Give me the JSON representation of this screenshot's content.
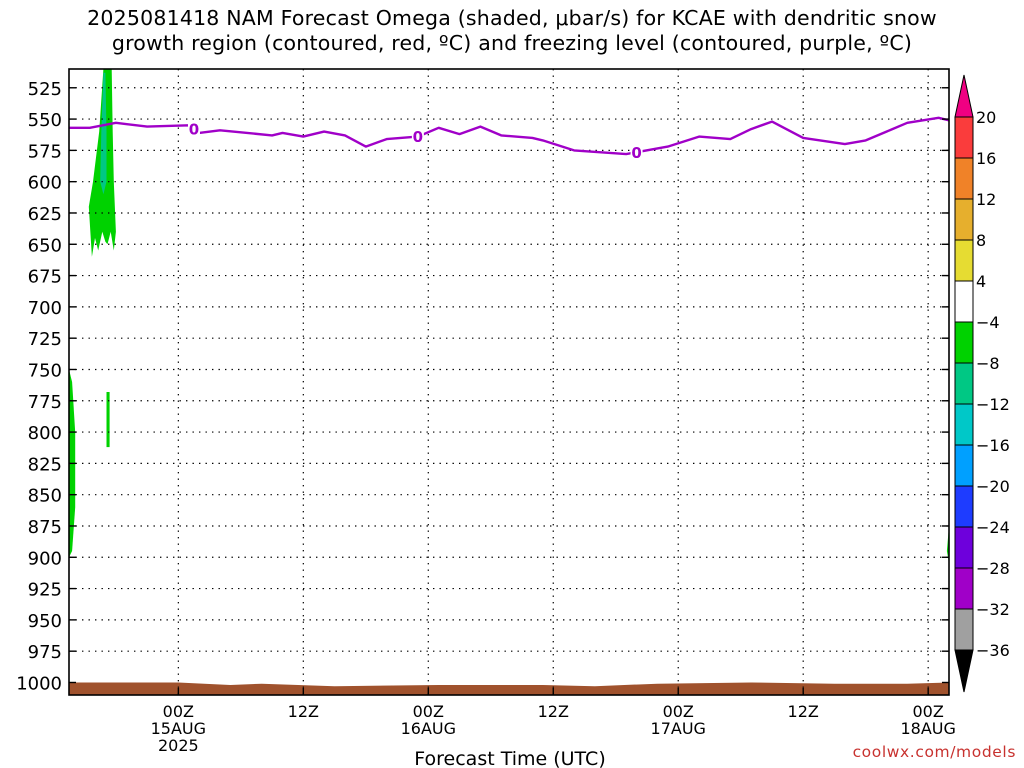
{
  "title_line1": "2025081418 NAM Forecast Omega (shaded, μbar/s) for KCAE with dendritic snow",
  "title_line2": "growth region (contoured, red, ºC) and freezing level (contoured, purple, ºC)",
  "credit": "coolwx.com/models",
  "chart_data": {
    "type": "time-height cross section",
    "xlabel": "Forecast Time (UTC)",
    "ylim": [
      510,
      1010
    ],
    "xlim_hours": [
      -10.5,
      74
    ],
    "yticks": [
      525,
      550,
      575,
      600,
      625,
      650,
      675,
      700,
      725,
      750,
      775,
      800,
      825,
      850,
      875,
      900,
      925,
      950,
      975,
      1000
    ],
    "xticks": [
      {
        "h": 0,
        "lines": [
          "00Z",
          "15AUG",
          "2025"
        ]
      },
      {
        "h": 12,
        "lines": [
          "12Z"
        ]
      },
      {
        "h": 24,
        "lines": [
          "00Z",
          "16AUG"
        ]
      },
      {
        "h": 36,
        "lines": [
          "12Z"
        ]
      },
      {
        "h": 48,
        "lines": [
          "00Z",
          "17AUG"
        ]
      },
      {
        "h": 60,
        "lines": [
          "12Z"
        ]
      },
      {
        "h": 72,
        "lines": [
          "00Z",
          "18AUG"
        ]
      }
    ],
    "grid": true,
    "freezing_level": {
      "color": "#a000c8",
      "label": "0",
      "label_hours": [
        1.5,
        23,
        44
      ],
      "points": [
        [
          -10.5,
          557
        ],
        [
          -8.5,
          557
        ],
        [
          -6,
          553
        ],
        [
          -3,
          556
        ],
        [
          1,
          555
        ],
        [
          2,
          561
        ],
        [
          4,
          559
        ],
        [
          9,
          563
        ],
        [
          10,
          561
        ],
        [
          12,
          564
        ],
        [
          14,
          560
        ],
        [
          16,
          563
        ],
        [
          18,
          572
        ],
        [
          20,
          566
        ],
        [
          23,
          564
        ],
        [
          25,
          557
        ],
        [
          27,
          562
        ],
        [
          29,
          556
        ],
        [
          31,
          563
        ],
        [
          34,
          565
        ],
        [
          35,
          567
        ],
        [
          38,
          575
        ],
        [
          43,
          578
        ],
        [
          47,
          572
        ],
        [
          50,
          564
        ],
        [
          53,
          566
        ],
        [
          55,
          558
        ],
        [
          57,
          552
        ],
        [
          60,
          565
        ],
        [
          64,
          570
        ],
        [
          66,
          567
        ],
        [
          68,
          560
        ],
        [
          70,
          553
        ],
        [
          73,
          549
        ],
        [
          74,
          551
        ],
        [
          76,
          557
        ],
        [
          78,
          571
        ],
        [
          80,
          577
        ],
        [
          81,
          566
        ],
        [
          82,
          553
        ],
        [
          85,
          537
        ],
        [
          86,
          540
        ]
      ]
    },
    "omega_shading": [
      {
        "color": "#00d200",
        "value_range": [
          -8,
          -4
        ],
        "points": [
          [
            -7.2,
            510
          ],
          [
            -6.4,
            510
          ],
          [
            -6.3,
            560
          ],
          [
            -6.2,
            600
          ],
          [
            -6.0,
            640
          ],
          [
            -6.2,
            655
          ],
          [
            -6.5,
            640
          ],
          [
            -6.8,
            650
          ],
          [
            -7.0,
            648
          ],
          [
            -7.3,
            640
          ],
          [
            -7.7,
            655
          ],
          [
            -8.0,
            645
          ],
          [
            -8.3,
            660
          ],
          [
            -8.6,
            620
          ],
          [
            -8.2,
            600
          ],
          [
            -7.6,
            560
          ]
        ]
      },
      {
        "color": "#00c884",
        "value_range": [
          -12,
          -8
        ],
        "points": [
          [
            -7.2,
            513
          ],
          [
            -7.0,
            513
          ],
          [
            -6.9,
            560
          ],
          [
            -6.9,
            600
          ],
          [
            -7.2,
            610
          ],
          [
            -7.5,
            600
          ],
          [
            -7.4,
            560
          ]
        ]
      },
      {
        "color": "#00d200",
        "value_range": [
          -8,
          -4
        ],
        "points": [
          [
            -10.5,
            750
          ],
          [
            -10.2,
            760
          ],
          [
            -9.9,
            800
          ],
          [
            -9.9,
            860
          ],
          [
            -10.2,
            895
          ],
          [
            -10.5,
            900
          ]
        ]
      },
      {
        "color": "#00d200",
        "value_range": [
          -8,
          -4
        ],
        "points": [
          [
            -6.9,
            768
          ],
          [
            -6.6,
            768
          ],
          [
            -6.6,
            812
          ],
          [
            -6.9,
            812
          ]
        ]
      },
      {
        "color": "#00d200",
        "value_range": [
          -8,
          -4
        ],
        "points": [
          [
            74,
            875
          ],
          [
            73.8,
            895
          ],
          [
            74,
            905
          ]
        ]
      }
    ],
    "terrain": {
      "color": "#a0522d",
      "points": [
        [
          -10.5,
          1000
        ],
        [
          0,
          1000
        ],
        [
          5,
          1002
        ],
        [
          8,
          1001
        ],
        [
          15,
          1003
        ],
        [
          25,
          1002
        ],
        [
          35,
          1002
        ],
        [
          40,
          1003
        ],
        [
          46,
          1001
        ],
        [
          55,
          1000
        ],
        [
          63,
          1001
        ],
        [
          70,
          1001
        ],
        [
          74,
          1000
        ]
      ]
    },
    "colorbar": {
      "levels": [
        -36,
        -32,
        -28,
        -24,
        -20,
        -16,
        -12,
        -8,
        -4,
        4,
        8,
        12,
        16,
        20
      ],
      "colors": [
        "#000000",
        "#a0a0a0",
        "#a000c8",
        "#6e00dc",
        "#1e3cff",
        "#00a0ff",
        "#00c8c8",
        "#00c884",
        "#00d200",
        "#ffffff",
        "#e6dc32",
        "#e6af2d",
        "#f08228",
        "#fa3c3c",
        "#f00082"
      ]
    }
  }
}
